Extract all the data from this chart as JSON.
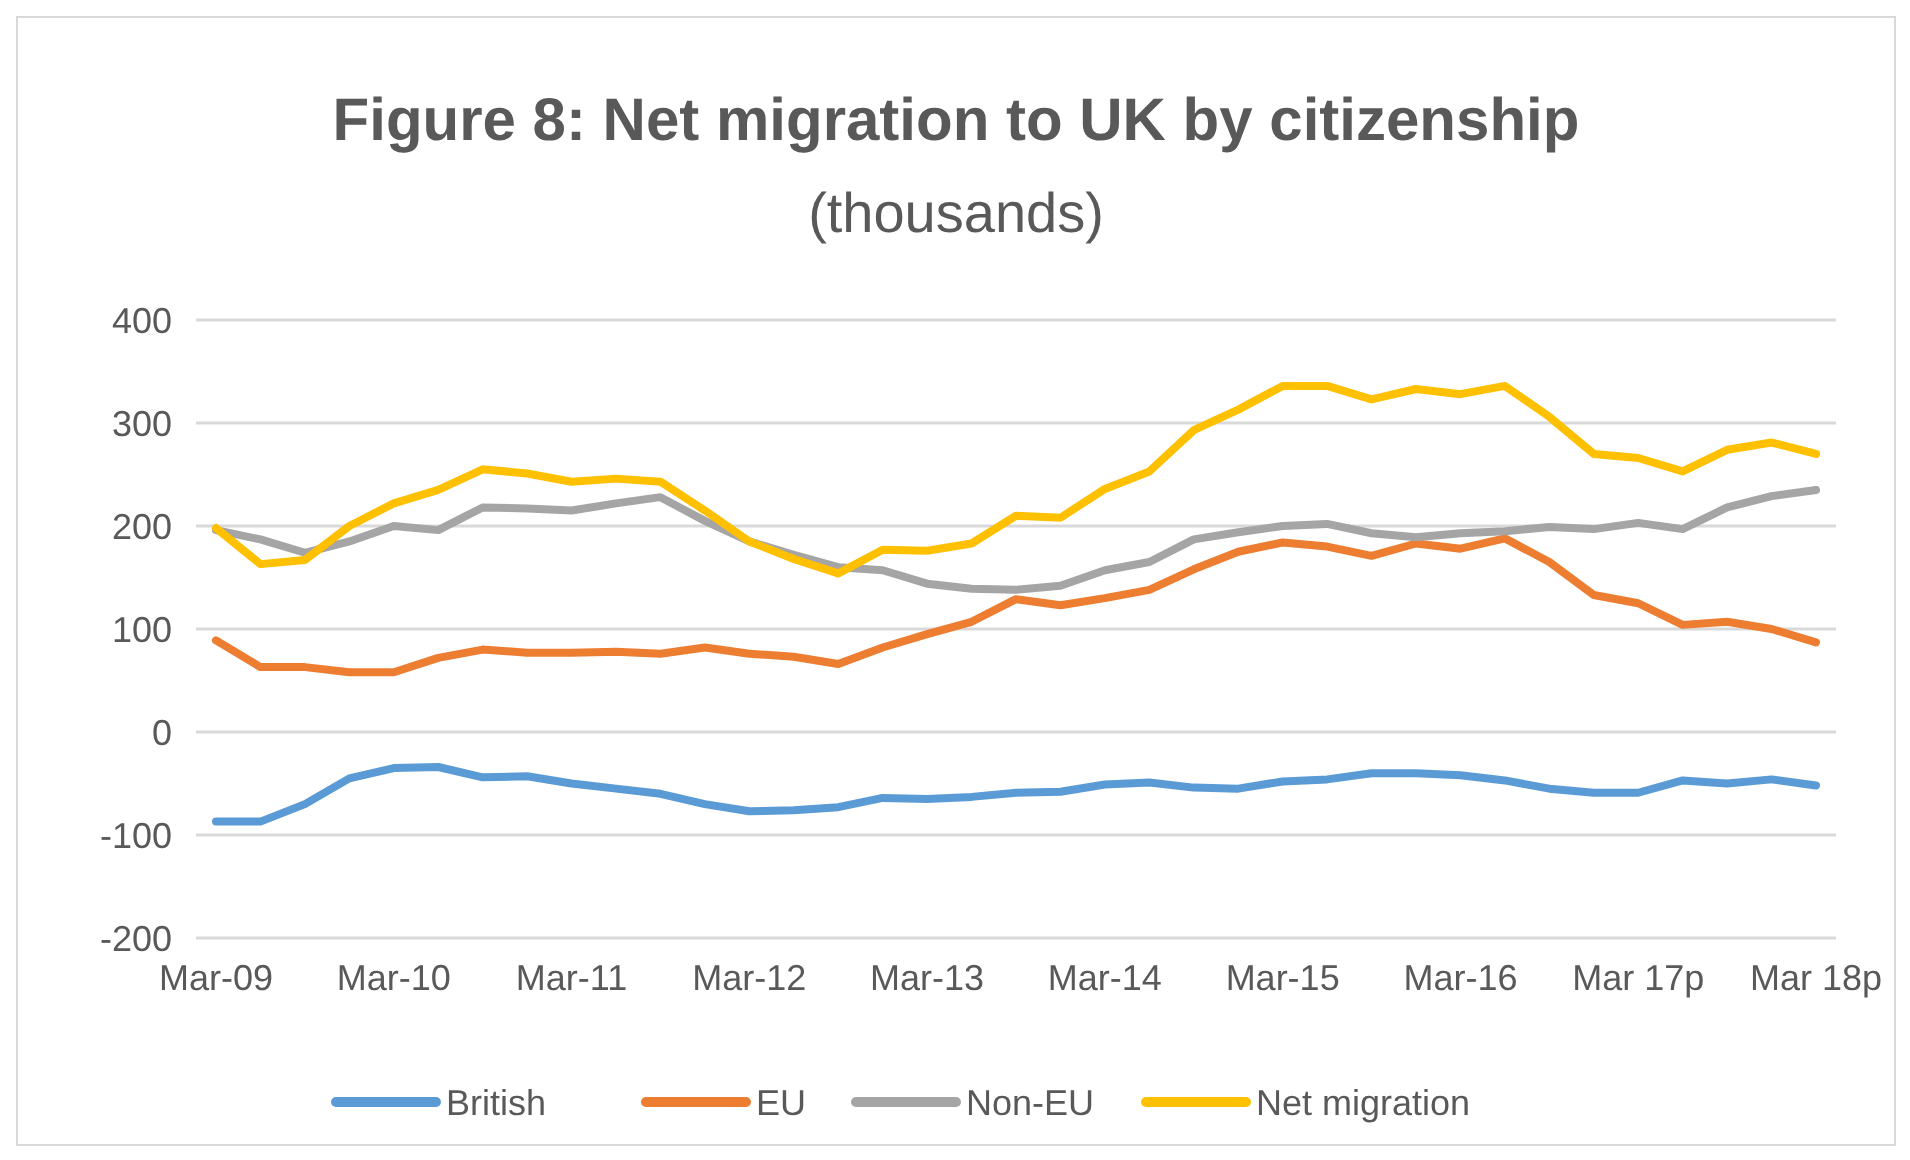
{
  "chart_data": {
    "type": "line",
    "title": "Figure 8: Net migration to UK by citizenship",
    "subtitle": "(thousands)",
    "categories": [
      "Mar-09",
      null,
      null,
      null,
      "Mar-10",
      null,
      null,
      null,
      "Mar-11",
      null,
      null,
      null,
      "Mar-12",
      null,
      null,
      null,
      "Mar-13",
      null,
      null,
      null,
      "Mar-14",
      null,
      null,
      null,
      "Mar-15",
      null,
      null,
      null,
      "Mar-16",
      null,
      null,
      null,
      "Mar 17p",
      null,
      null,
      null,
      "Mar 18p"
    ],
    "series": [
      {
        "name": "British",
        "color": "#5b9bd5",
        "values": [
          -87,
          -87,
          -70,
          -45,
          -35,
          -34,
          -44,
          -43,
          -50,
          -55,
          -60,
          -70,
          -77,
          -76,
          -73,
          -64,
          -65,
          -63,
          -59,
          -58,
          -51,
          -49,
          -54,
          -55,
          -48,
          -46,
          -40,
          -40,
          -42,
          -47,
          -55,
          -59,
          -59,
          -47,
          -50,
          -46,
          -52
        ]
      },
      {
        "name": "EU",
        "color": "#ed7d31",
        "values": [
          89,
          63,
          63,
          58,
          58,
          72,
          80,
          77,
          77,
          78,
          76,
          82,
          76,
          73,
          66,
          82,
          95,
          107,
          129,
          123,
          130,
          138,
          158,
          175,
          184,
          180,
          171,
          183,
          178,
          188,
          165,
          133,
          125,
          104,
          107,
          100,
          87
        ]
      },
      {
        "name": "Non-EU",
        "color": "#a5a5a5",
        "values": [
          196,
          187,
          174,
          185,
          200,
          196,
          218,
          217,
          215,
          222,
          228,
          205,
          185,
          172,
          160,
          157,
          144,
          139,
          138,
          142,
          157,
          165,
          187,
          194,
          200,
          202,
          193,
          189,
          193,
          195,
          199,
          197,
          203,
          197,
          218,
          229,
          235
        ]
      },
      {
        "name": "Net migration",
        "color": "#ffc000",
        "values": [
          198,
          163,
          167,
          200,
          222,
          235,
          255,
          251,
          243,
          246,
          243,
          215,
          185,
          168,
          154,
          177,
          176,
          183,
          210,
          208,
          236,
          253,
          293,
          313,
          336,
          336,
          323,
          333,
          328,
          336,
          306,
          270,
          266,
          253,
          274,
          281,
          270
        ]
      }
    ],
    "ylim": [
      -200,
      400
    ],
    "yticks": [
      -200,
      -100,
      0,
      100,
      200,
      300,
      400
    ],
    "grid": "y",
    "legend": "bottom",
    "marker": "none",
    "line_style": "solid"
  }
}
